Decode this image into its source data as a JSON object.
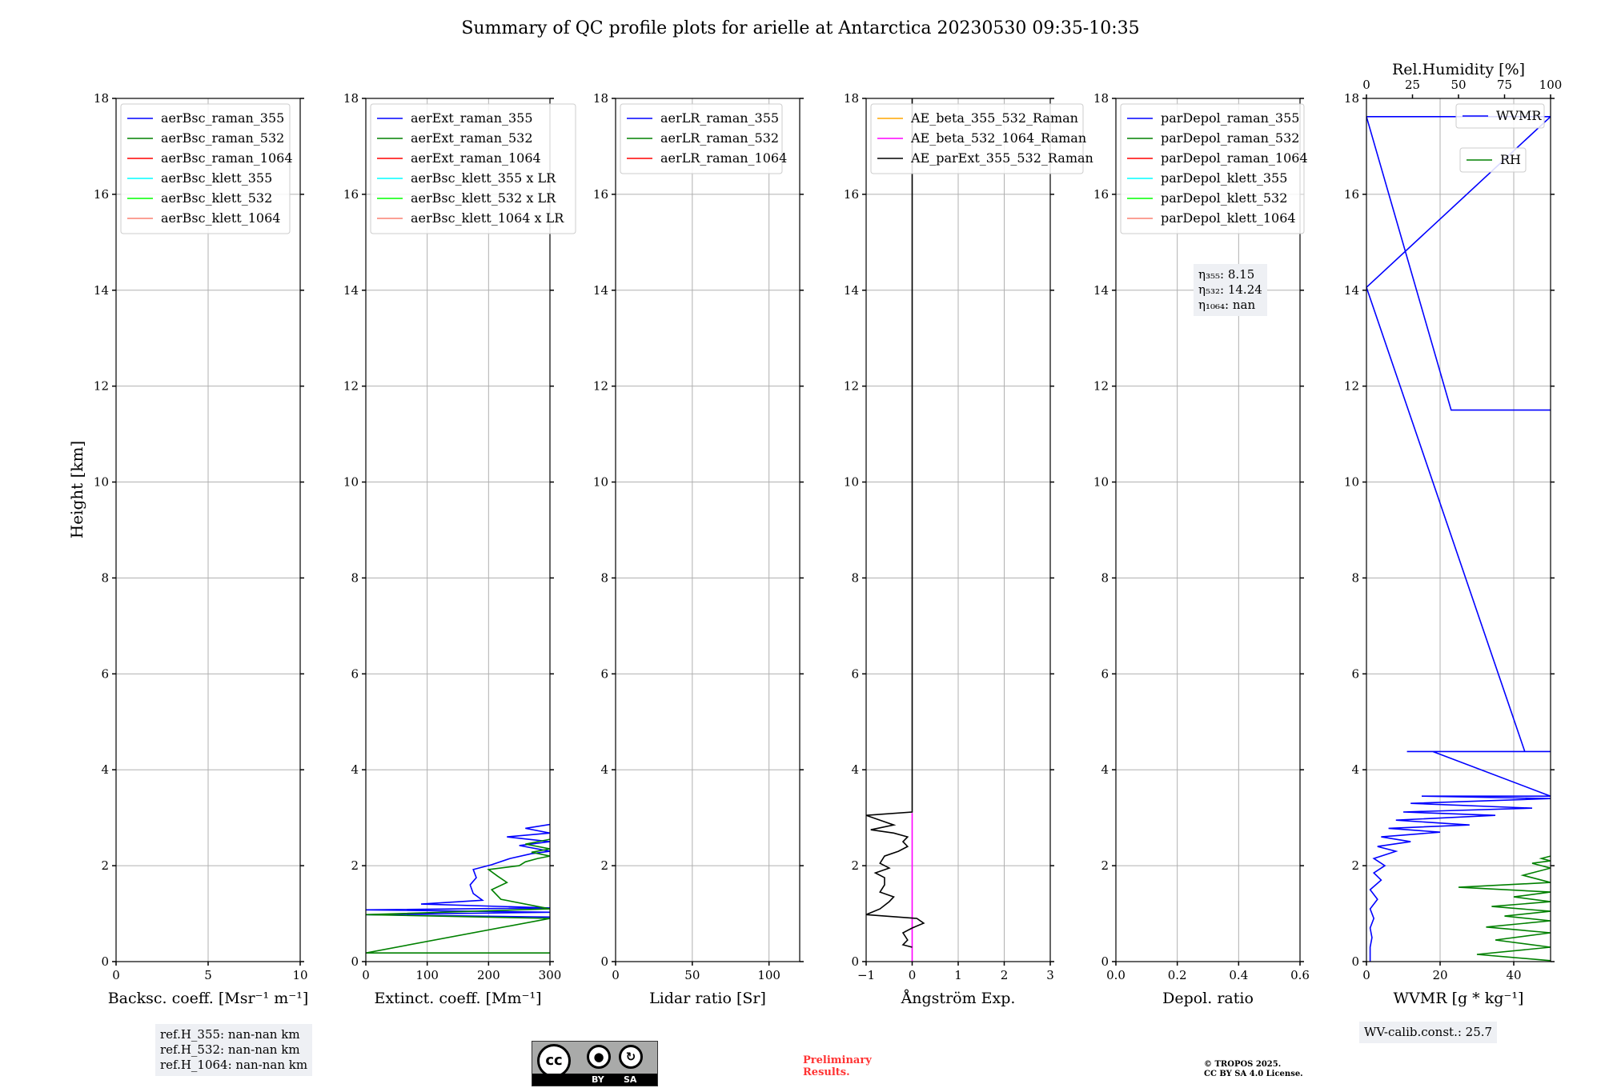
{
  "title": "Summary of QC profile plots for arielle at Antarctica 20230530 09:35-10:35",
  "y_label": "Height [km]",
  "y_ticks": [
    "0",
    "2",
    "4",
    "6",
    "8",
    "10",
    "12",
    "14",
    "16",
    "18"
  ],
  "colors": {
    "blue": "#0000ff",
    "green": "#008000",
    "red": "#ff0000",
    "cyan": "#00ffff",
    "lime": "#00ff00",
    "salmon": "#fa8072",
    "orange": "#ffa500",
    "magenta": "#ff00ff",
    "black": "#000000",
    "prelim": "#ff3333"
  },
  "chart_data": [
    {
      "type": "line",
      "id": "backscatter",
      "xlabel": "Backsc. coeff. [Msr⁻¹ m⁻¹]",
      "xlim": [
        0,
        10
      ],
      "ylim": [
        0,
        18
      ],
      "xticks": [
        {
          "v": 0,
          "t": "0"
        },
        {
          "v": 5,
          "t": "5"
        },
        {
          "v": 10,
          "t": "10"
        }
      ],
      "legend_loc": "upper-left",
      "legend": [
        {
          "label": "aerBsc_raman_355",
          "color": "#0000ff"
        },
        {
          "label": "aerBsc_raman_532",
          "color": "#008000"
        },
        {
          "label": "aerBsc_raman_1064",
          "color": "#ff0000"
        },
        {
          "label": "aerBsc_klett_355",
          "color": "#00ffff"
        },
        {
          "label": "aerBsc_klett_532",
          "color": "#00ff00"
        },
        {
          "label": "aerBsc_klett_1064",
          "color": "#fa8072"
        }
      ],
      "series": []
    },
    {
      "type": "line",
      "id": "extinction",
      "xlabel": "Extinct. coeff. [Mm⁻¹]",
      "xlim": [
        0,
        300
      ],
      "ylim": [
        0,
        18
      ],
      "xticks": [
        {
          "v": 0,
          "t": "0"
        },
        {
          "v": 100,
          "t": "100"
        },
        {
          "v": 200,
          "t": "200"
        },
        {
          "v": 300,
          "t": "300"
        }
      ],
      "legend_loc": "upper-left",
      "legend": [
        {
          "label": "aerExt_raman_355",
          "color": "#0000ff"
        },
        {
          "label": "aerExt_raman_532",
          "color": "#008000"
        },
        {
          "label": "aerExt_raman_1064",
          "color": "#ff0000"
        },
        {
          "label": "aerBsc_klett_355 x LR",
          "color": "#00ffff"
        },
        {
          "label": "aerBsc_klett_532 x LR",
          "color": "#00ff00"
        },
        {
          "label": "aerBsc_klett_1064 x LR",
          "color": "#fa8072"
        }
      ],
      "series": [
        {
          "name": "aerExt_raman_355",
          "color": "#0000ff",
          "x": [
            300,
            0,
            300,
            0,
            300,
            90,
            190,
            175,
            170,
            180,
            175,
            205,
            235,
            270,
            300,
            250,
            300,
            230,
            300,
            260,
            300
          ],
          "y": [
            0.93,
            0.98,
            1.03,
            1.08,
            1.12,
            1.2,
            1.28,
            1.42,
            1.6,
            1.75,
            1.92,
            2.02,
            2.15,
            2.25,
            2.3,
            2.42,
            2.5,
            2.6,
            2.68,
            2.78,
            2.86
          ]
        },
        {
          "name": "aerExt_raman_532",
          "color": "#008000",
          "x": [
            300,
            0,
            300,
            0,
            300,
            220,
            205,
            230,
            215,
            200,
            250,
            260,
            280,
            300,
            270,
            300,
            260,
            300
          ],
          "y": [
            0.18,
            0.18,
            0.9,
            0.98,
            1.1,
            1.3,
            1.5,
            1.65,
            1.78,
            1.92,
            2.0,
            2.08,
            2.15,
            2.2,
            2.28,
            2.35,
            2.45,
            2.55
          ]
        }
      ]
    },
    {
      "type": "line",
      "id": "lidar-ratio",
      "xlabel": "Lidar ratio [Sr]",
      "xlim": [
        0,
        120
      ],
      "ylim": [
        0,
        18
      ],
      "xticks": [
        {
          "v": 0,
          "t": "0"
        },
        {
          "v": 50,
          "t": "50"
        },
        {
          "v": 100,
          "t": "100"
        }
      ],
      "legend_loc": "upper-left",
      "legend": [
        {
          "label": "aerLR_raman_355",
          "color": "#0000ff"
        },
        {
          "label": "aerLR_raman_532",
          "color": "#008000"
        },
        {
          "label": "aerLR_raman_1064",
          "color": "#ff0000"
        }
      ],
      "series": []
    },
    {
      "type": "line",
      "id": "angstrom",
      "xlabel": "Ångström Exp.",
      "xlim": [
        -1,
        3
      ],
      "ylim": [
        0,
        18
      ],
      "xticks": [
        {
          "v": -1,
          "t": "−1"
        },
        {
          "v": 0,
          "t": "0"
        },
        {
          "v": 1,
          "t": "1"
        },
        {
          "v": 2,
          "t": "2"
        },
        {
          "v": 3,
          "t": "3"
        }
      ],
      "legend_loc": "upper-left",
      "legend": [
        {
          "label": "AE_beta_355_532_Raman",
          "color": "#ffa500"
        },
        {
          "label": "AE_beta_532_1064_Raman",
          "color": "#ff00ff"
        },
        {
          "label": "AE_parExt_355_532_Raman",
          "color": "#000000"
        }
      ],
      "series": [
        {
          "name": "AE_beta_532_1064_Raman",
          "color": "#ff00ff",
          "x": [
            0,
            0
          ],
          "y": [
            0.0,
            3.1
          ]
        },
        {
          "name": "AE_parExt_355_532_Raman",
          "color": "#000000",
          "x": [
            0.0,
            -0.2,
            -0.1,
            -0.2,
            0.0,
            0.25,
            0.1,
            -1.0,
            -0.7,
            -0.5,
            -0.4,
            -0.7,
            -0.6,
            -0.6,
            -0.8,
            -0.5,
            -0.7,
            -0.6,
            -0.3,
            -0.1,
            -0.2,
            -0.1,
            -0.4,
            -0.9,
            -0.4,
            -1.0,
            0.0,
            0.0
          ],
          "y": [
            0.3,
            0.35,
            0.45,
            0.6,
            0.7,
            0.8,
            0.9,
            0.98,
            1.1,
            1.25,
            1.35,
            1.45,
            1.6,
            1.75,
            1.85,
            1.95,
            2.05,
            2.2,
            2.3,
            2.4,
            2.5,
            2.6,
            2.68,
            2.75,
            2.85,
            3.05,
            3.12,
            18.0
          ]
        }
      ]
    },
    {
      "type": "line",
      "id": "depol",
      "xlabel": "Depol. ratio",
      "xlim": [
        0,
        0.6
      ],
      "ylim": [
        0,
        18
      ],
      "xticks": [
        {
          "v": 0,
          "t": "0.0"
        },
        {
          "v": 0.2,
          "t": "0.2"
        },
        {
          "v": 0.4,
          "t": "0.4"
        },
        {
          "v": 0.6,
          "t": "0.6"
        }
      ],
      "legend_loc": "upper-left",
      "legend": [
        {
          "label": "parDepol_raman_355",
          "color": "#0000ff"
        },
        {
          "label": "parDepol_raman_532",
          "color": "#008000"
        },
        {
          "label": "parDepol_raman_1064",
          "color": "#ff0000"
        },
        {
          "label": "parDepol_klett_355",
          "color": "#00ffff"
        },
        {
          "label": "parDepol_klett_532",
          "color": "#00ff00"
        },
        {
          "label": "parDepol_klett_1064",
          "color": "#fa8072"
        }
      ],
      "series": [],
      "annotation": [
        "η₃₅₅: 8.15",
        "η₅₃₂: 14.24",
        "η₁₀₆₄: nan"
      ]
    },
    {
      "type": "line",
      "id": "wvmr",
      "xlabel": "WVMR [g * kg⁻¹]",
      "xlim": [
        0,
        50
      ],
      "ylim": [
        0,
        18
      ],
      "xticks": [
        {
          "v": 0,
          "t": "0"
        },
        {
          "v": 20,
          "t": "20"
        },
        {
          "v": 40,
          "t": "40"
        }
      ],
      "top_xlabel": "Rel.Humidity [%]",
      "top_xlim": [
        0,
        100
      ],
      "top_xticks": [
        {
          "v": 0,
          "t": "0"
        },
        {
          "v": 25,
          "t": "25"
        },
        {
          "v": 50,
          "t": "50"
        },
        {
          "v": 75,
          "t": "75"
        },
        {
          "v": 100,
          "t": "100"
        }
      ],
      "legend": [
        {
          "label": "WVMR",
          "color": "#0000ff",
          "loc": "upper-right"
        },
        {
          "label": "RH",
          "color": "#008000",
          "loc": "upper-right-lower"
        }
      ],
      "series": [
        {
          "name": "WVMR",
          "color": "#0000ff",
          "x": [
            1,
            1,
            1.5,
            1,
            2,
            1,
            3,
            1,
            4,
            2,
            5,
            2,
            8,
            3,
            12,
            4,
            20,
            6,
            28,
            8,
            35,
            10,
            45,
            12,
            50,
            15,
            50,
            18,
            50,
            11,
            43,
            0,
            50,
            0,
            23,
            50
          ],
          "y": [
            0.0,
            0.3,
            0.5,
            0.7,
            0.9,
            1.1,
            1.3,
            1.5,
            1.7,
            1.85,
            2.0,
            2.15,
            2.3,
            2.4,
            2.5,
            2.6,
            2.7,
            2.78,
            2.85,
            2.95,
            3.05,
            3.12,
            3.2,
            3.3,
            3.4,
            3.45,
            3.45,
            4.38,
            4.38,
            4.38,
            4.38,
            14.06,
            17.62,
            17.62,
            11.5,
            11.5
          ]
        },
        {
          "name": "RH",
          "color": "#008000",
          "x": [
            100,
            60,
            100,
            70,
            100,
            65,
            100,
            75,
            100,
            68,
            100,
            80,
            100,
            50,
            100,
            85,
            100,
            90,
            100,
            95,
            100
          ],
          "y": [
            0.02,
            0.15,
            0.3,
            0.45,
            0.6,
            0.72,
            0.85,
            0.95,
            1.05,
            1.15,
            1.25,
            1.35,
            1.45,
            1.55,
            1.65,
            1.8,
            1.95,
            2.05,
            2.1,
            2.15,
            2.2
          ]
        }
      ],
      "annotation": [
        "WV-calib.const.: 25.7"
      ]
    }
  ],
  "ref_heights": [
    "ref.H_355: nan-nan km",
    "ref.H_532: nan-nan km",
    "ref.H_1064: nan-nan km"
  ],
  "license_badge": {
    "main": "cc",
    "by": "BY",
    "sa": "SA"
  },
  "preliminary": [
    "Preliminary",
    "Results."
  ],
  "copyright": [
    "© TROPOS 2025.",
    "CC BY SA 4.0 License."
  ]
}
